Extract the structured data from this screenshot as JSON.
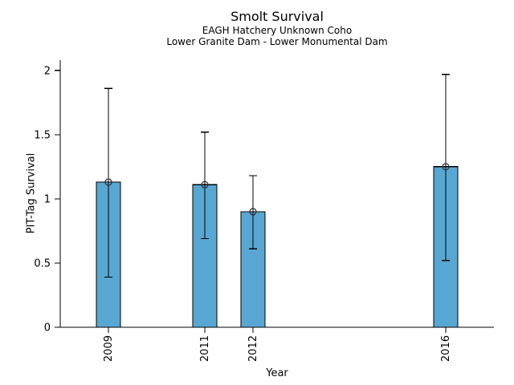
{
  "chart_data": {
    "type": "bar",
    "title": "Smolt Survival",
    "subtitles": [
      "EAGH Hatchery Unknown Coho",
      "Lower Granite Dam - Lower Monumental Dam"
    ],
    "xlabel": "Year",
    "ylabel": "PIT-Tag Survival",
    "categories": [
      "2009",
      "2011",
      "2012",
      "2016"
    ],
    "x_years": [
      2009,
      2011,
      2012,
      2016
    ],
    "values": [
      1.13,
      1.11,
      0.9,
      1.25
    ],
    "error_low": [
      0.39,
      0.69,
      0.61,
      0.52
    ],
    "error_high": [
      1.86,
      1.52,
      1.18,
      1.97
    ],
    "bar_width_years": 0.5,
    "xlim": [
      2008,
      2017
    ],
    "ylim": [
      0,
      2.08
    ],
    "yticks": [
      0,
      0.5,
      1,
      1.5,
      2
    ],
    "ytick_labels": [
      "0",
      "0.5",
      "1",
      "1.5",
      "2"
    ],
    "grid": false,
    "legend": "none",
    "marker": "open-circle",
    "colors": {
      "bar_fill": "#58a7d3",
      "bar_edge": "#000000",
      "error_bar": "#000000",
      "marker_edge": "#333333",
      "axis": "#000000",
      "text": "#000000",
      "background": "#ffffff"
    }
  }
}
